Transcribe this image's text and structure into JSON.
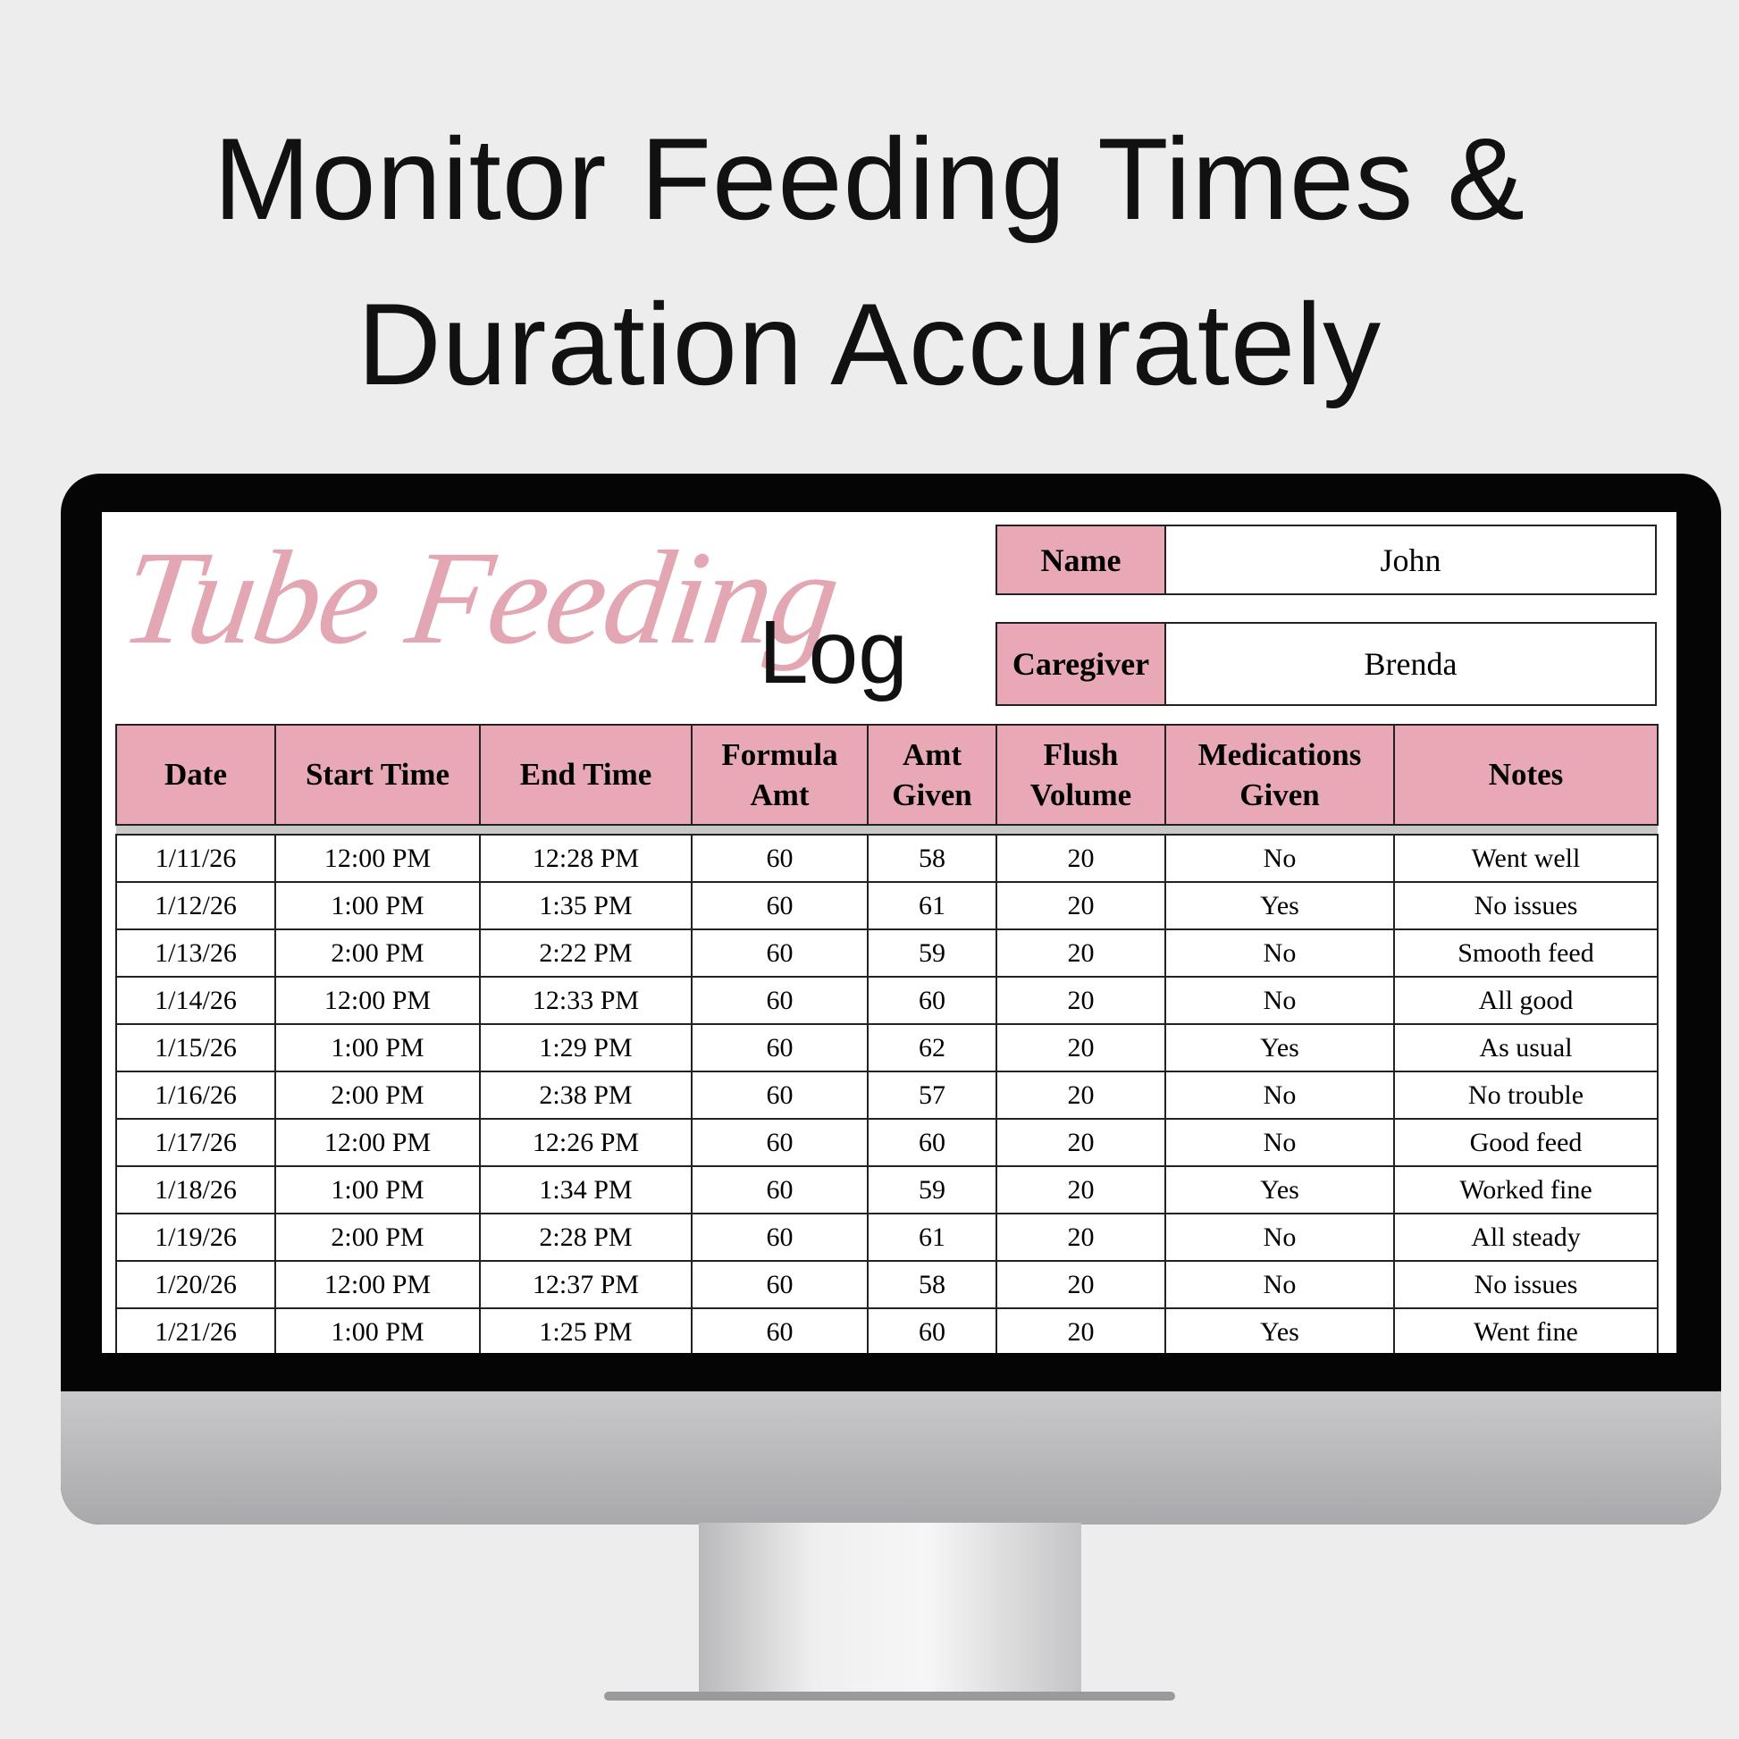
{
  "headline": {
    "line1": "Monitor Feeding Times &",
    "line2": "Duration Accurately"
  },
  "sheet": {
    "title_script": "Tube Feeding",
    "title_word": "Log",
    "name_label": "Name",
    "name_value": "John",
    "caregiver_label": "Caregiver",
    "caregiver_value": "Brenda",
    "accent_color": "#e8a8b5",
    "columns": [
      "Date",
      "Start Time",
      "End Time",
      "Formula Amt",
      "Amt Given",
      "Flush Volume",
      "Medications Given",
      "Notes"
    ],
    "rows": [
      [
        "1/11/26",
        "12:00 PM",
        "12:28 PM",
        "60",
        "58",
        "20",
        "No",
        "Went well"
      ],
      [
        "1/12/26",
        "1:00 PM",
        "1:35 PM",
        "60",
        "61",
        "20",
        "Yes",
        "No issues"
      ],
      [
        "1/13/26",
        "2:00 PM",
        "2:22 PM",
        "60",
        "59",
        "20",
        "No",
        "Smooth feed"
      ],
      [
        "1/14/26",
        "12:00 PM",
        "12:33 PM",
        "60",
        "60",
        "20",
        "No",
        "All good"
      ],
      [
        "1/15/26",
        "1:00 PM",
        "1:29 PM",
        "60",
        "62",
        "20",
        "Yes",
        "As usual"
      ],
      [
        "1/16/26",
        "2:00 PM",
        "2:38 PM",
        "60",
        "57",
        "20",
        "No",
        "No trouble"
      ],
      [
        "1/17/26",
        "12:00 PM",
        "12:26 PM",
        "60",
        "60",
        "20",
        "No",
        "Good feed"
      ],
      [
        "1/18/26",
        "1:00 PM",
        "1:34 PM",
        "60",
        "59",
        "20",
        "Yes",
        "Worked fine"
      ],
      [
        "1/19/26",
        "2:00 PM",
        "2:28 PM",
        "60",
        "61",
        "20",
        "No",
        "All steady"
      ],
      [
        "1/20/26",
        "12:00 PM",
        "12:37 PM",
        "60",
        "58",
        "20",
        "No",
        "No issues"
      ],
      [
        "1/21/26",
        "1:00 PM",
        "1:25 PM",
        "60",
        "60",
        "20",
        "Yes",
        "Went fine"
      ]
    ]
  }
}
